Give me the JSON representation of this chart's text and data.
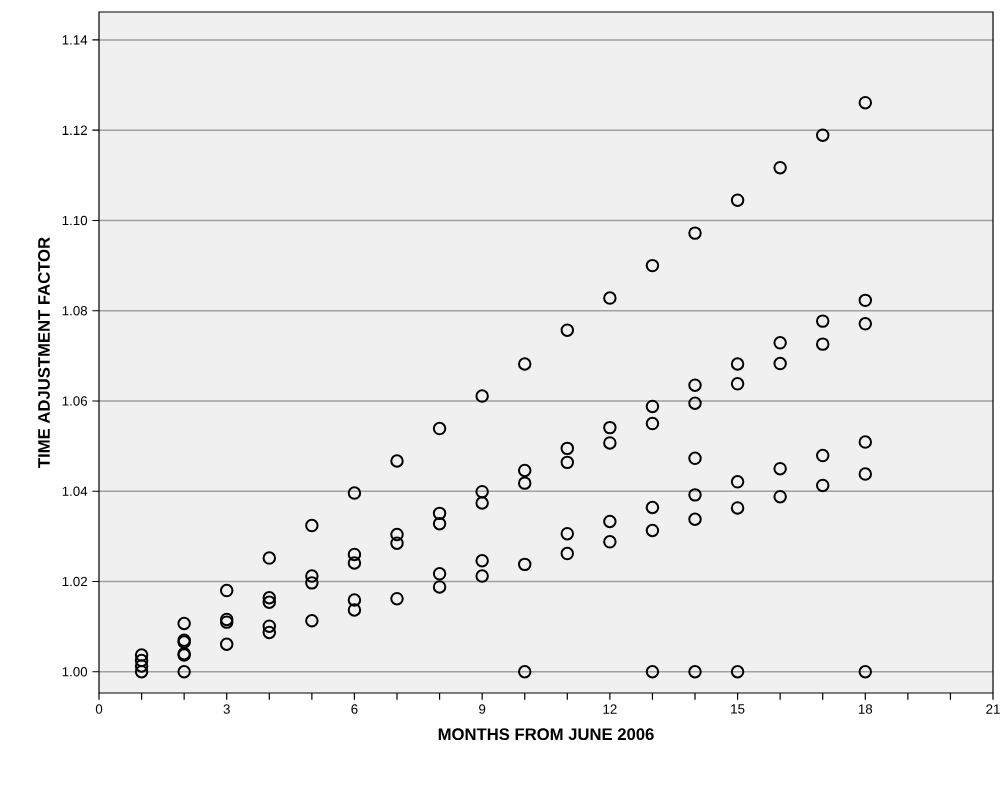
{
  "chart_data": {
    "type": "scatter",
    "xlabel": "MONTHS FROM JUNE 2006",
    "ylabel": "TIME ADJUSTMENT FACTOR",
    "x": [
      1,
      1,
      1,
      1,
      2,
      2,
      2,
      2,
      2,
      2,
      3,
      3,
      3,
      3,
      4,
      4,
      4,
      4,
      4,
      5,
      5,
      5,
      5,
      6,
      6,
      6,
      6,
      6,
      7,
      7,
      7,
      7,
      8,
      8,
      8,
      8,
      8,
      9,
      9,
      9,
      9,
      9,
      10,
      10,
      10,
      10,
      10,
      11,
      11,
      11,
      11,
      11,
      12,
      12,
      12,
      12,
      12,
      13,
      13,
      13,
      13,
      13,
      13,
      14,
      14,
      14,
      14,
      14,
      14,
      14,
      15,
      15,
      15,
      15,
      15,
      15,
      16,
      16,
      16,
      16,
      16,
      17,
      17,
      17,
      17,
      17,
      18,
      18,
      18,
      18,
      18,
      18
    ],
    "values": [
      1.0037,
      1.0025,
      1.0013,
      1.0,
      1.0107,
      1.007,
      1.0066,
      1.004,
      1.0037,
      1.0,
      1.018,
      1.0116,
      1.011,
      1.0061,
      1.0252,
      1.0164,
      1.0154,
      1.0101,
      1.0087,
      1.0324,
      1.0212,
      1.0197,
      1.0113,
      1.0396,
      1.026,
      1.0241,
      1.0159,
      1.0137,
      1.0467,
      1.0304,
      1.0285,
      1.0162,
      1.0539,
      1.0351,
      1.0328,
      1.0217,
      1.0188,
      1.0611,
      1.0399,
      1.0374,
      1.0246,
      1.0212,
      1.0682,
      1.0446,
      1.0418,
      1.0238,
      1.0,
      1.0757,
      1.0495,
      1.0464,
      1.0306,
      1.0262,
      1.0828,
      1.0541,
      1.0507,
      1.0333,
      1.0288,
      1.09,
      1.0588,
      1.055,
      1.0364,
      1.0313,
      1.0,
      1.0972,
      1.0635,
      1.0595,
      1.0473,
      1.0392,
      1.0338,
      1.0,
      1.1045,
      1.0682,
      1.0638,
      1.0421,
      1.0363,
      1.0,
      1.1117,
      1.0729,
      1.0683,
      1.045,
      1.0388,
      1.1189,
      1.0777,
      1.0726,
      1.0479,
      1.0413,
      1.1261,
      1.0823,
      1.0771,
      1.0509,
      1.0438,
      1.0
    ],
    "color": "#000000",
    "marker": "circle",
    "grid": "y",
    "xlim": [
      0,
      21
    ],
    "ylim": [
      0.9953,
      1.1462
    ],
    "xticks": [
      0,
      {
        "value": 1,
        "label": null
      },
      {
        "value": 2,
        "label": null
      },
      3,
      {
        "value": 4,
        "label": null
      },
      {
        "value": 5,
        "label": null
      },
      6,
      {
        "value": 7,
        "label": null
      },
      {
        "value": 8,
        "label": null
      },
      9,
      {
        "value": 10,
        "label": null
      },
      {
        "value": 11,
        "label": null
      },
      12,
      {
        "value": 13,
        "label": null
      },
      {
        "value": 14,
        "label": null
      },
      15,
      {
        "value": 16,
        "label": null
      },
      {
        "value": 17,
        "label": null
      },
      18,
      {
        "value": 19,
        "label": null
      },
      {
        "value": 20,
        "label": null
      },
      21
    ],
    "yticks": [
      {
        "value": 1.0,
        "label": "1.00"
      },
      {
        "value": 1.02,
        "label": "1.02"
      },
      {
        "value": 1.04,
        "label": "1.04"
      },
      {
        "value": 1.06,
        "label": "1.06"
      },
      {
        "value": 1.08,
        "label": "1.08"
      },
      {
        "value": 1.1,
        "label": "1.10"
      },
      {
        "value": 1.12,
        "label": "1.12"
      },
      {
        "value": 1.14,
        "label": "1.14"
      }
    ]
  }
}
